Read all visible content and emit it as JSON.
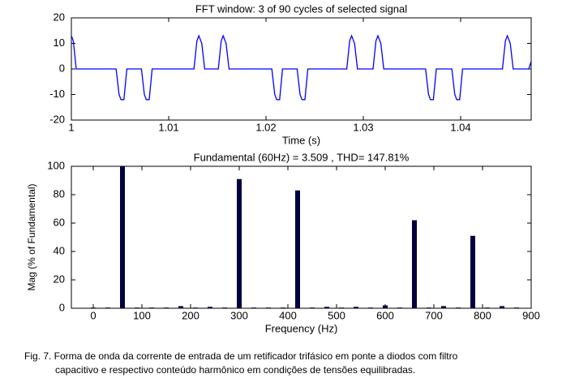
{
  "chart_data": [
    {
      "type": "line",
      "title": "FFT window: 3 of 90 cycles of selected signal",
      "xlabel": "Time (s)",
      "color": "#0000ff",
      "x": [
        1,
        1.0002,
        1.0005,
        1.0046,
        1.0049,
        1.0051,
        1.0054,
        1.0057,
        1.0072,
        1.0075,
        1.0077,
        1.008,
        1.0083,
        1.0126,
        1.0129,
        1.0131,
        1.0134,
        1.0137,
        1.0151,
        1.0154,
        1.0156,
        1.0159,
        1.0162,
        1.0206,
        1.0209,
        1.0211,
        1.0214,
        1.0217,
        1.0232,
        1.0235,
        1.0237,
        1.024,
        1.0243,
        1.0283,
        1.0286,
        1.0288,
        1.0291,
        1.0294,
        1.031,
        1.0313,
        1.0315,
        1.0318,
        1.0321,
        1.0364,
        1.0367,
        1.0369,
        1.0372,
        1.0375,
        1.0391,
        1.0394,
        1.0396,
        1.0399,
        1.0402,
        1.0443,
        1.0446,
        1.0448,
        1.0451,
        1.0454,
        1.047,
        1.04725
      ],
      "values": [
        13,
        11,
        0,
        0,
        -10,
        -12,
        -12,
        0,
        0,
        -10,
        -12,
        -12,
        0,
        0,
        11,
        13,
        10,
        0,
        0,
        11,
        13,
        10,
        0,
        0,
        -10,
        -12,
        -12,
        0,
        0,
        -10,
        -12,
        -12,
        0,
        0,
        11,
        13,
        10,
        0,
        0,
        11,
        13,
        10,
        0,
        0,
        -10,
        -12,
        -12,
        0,
        0,
        -10,
        -12,
        -12,
        0,
        0,
        11,
        13,
        10,
        0,
        0,
        3
      ],
      "xlim": [
        1,
        1.04725
      ],
      "ylim": [
        -20,
        20
      ],
      "xticks": [
        1,
        1.01,
        1.02,
        1.03,
        1.04
      ],
      "yticks": [
        -20,
        -10,
        0,
        10,
        20
      ],
      "grid": false
    },
    {
      "type": "bar",
      "title": "Fundamental (60Hz) = 3.509 , THD= 147.81%",
      "xlabel": "Frequency (Hz)",
      "ylabel": "Mag (% of Fundamental)",
      "color": "#000040",
      "x": [
        0,
        30,
        60,
        90,
        120,
        150,
        180,
        210,
        240,
        270,
        300,
        330,
        360,
        390,
        420,
        450,
        480,
        510,
        540,
        570,
        600,
        630,
        660,
        690,
        720,
        750,
        780,
        810,
        840,
        870
      ],
      "values": [
        0.5,
        0.5,
        100,
        0.5,
        0.5,
        0.5,
        1.5,
        0.5,
        1,
        0.5,
        91,
        0.5,
        0.5,
        0.5,
        83,
        0.5,
        1,
        0.5,
        1,
        0.5,
        2,
        0.5,
        62,
        0.5,
        1.5,
        0.5,
        51,
        0.5,
        1.5,
        0.5
      ],
      "xlim": [
        -45,
        900
      ],
      "ylim": [
        0,
        100
      ],
      "xticks": [
        0,
        100,
        200,
        300,
        400,
        500,
        600,
        700,
        800,
        900
      ],
      "yticks": [
        0,
        20,
        40,
        60,
        80,
        100
      ],
      "grid": false
    }
  ],
  "caption": [
    "Fig. 7. Forma de onda da corrente de entrada de um retificador trifásico em ponte a diodos com filtro",
    "capacitivo e respectivo conteúdo harmônico em condições de tensões equilibradas."
  ]
}
